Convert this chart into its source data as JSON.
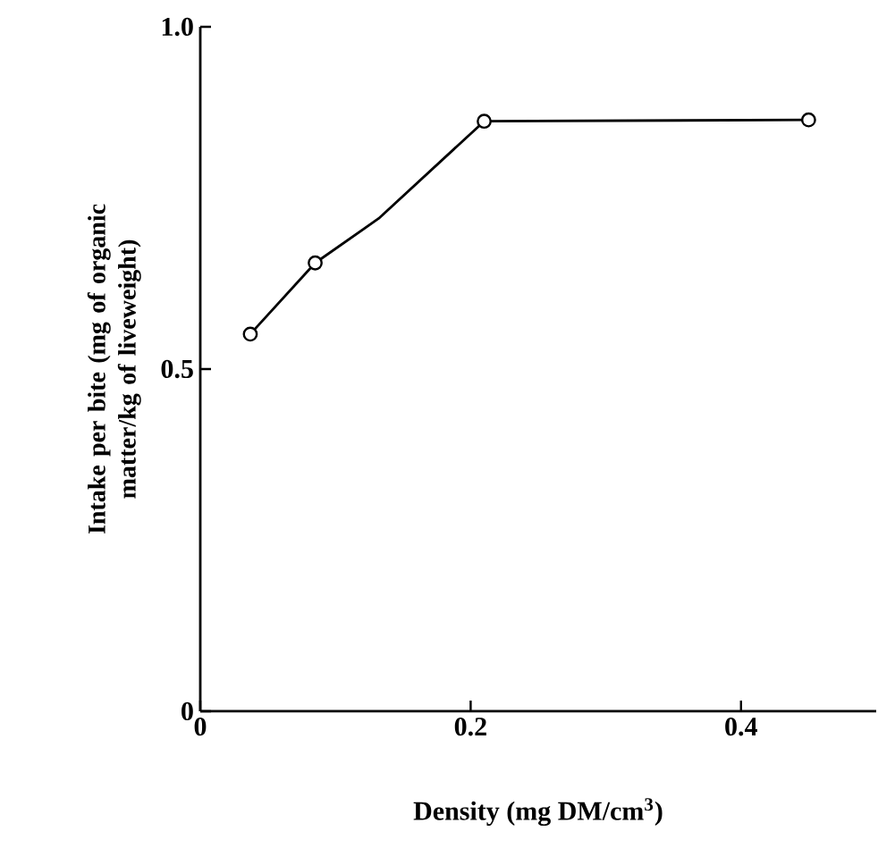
{
  "chart_data": {
    "type": "line",
    "xlabel": "Density (mg DM/cm$^{3}$)",
    "ylabel": "Intake per bite (mg of organic matter/kg of liveweight)",
    "xlim": [
      0,
      0.5
    ],
    "ylim": [
      0,
      1.0
    ],
    "xticks": [
      0,
      0.2,
      0.4
    ],
    "yticks": [
      0,
      0.5,
      {
        "value": 1.0,
        "label": "1.0"
      }
    ],
    "grid": false,
    "series": [
      {
        "type": "line",
        "color": "#000000",
        "marker": "none",
        "line_style": "solid",
        "x": [
          0.037,
          0.085,
          0.132,
          0.21,
          0.45
        ],
        "values": [
          0.551,
          0.655,
          0.72,
          0.862,
          0.864
        ]
      },
      {
        "type": "scatter",
        "color": "#000000",
        "marker": "circle",
        "x": [
          0.037,
          0.085,
          0.21,
          0.45
        ],
        "values": [
          0.551,
          0.655,
          0.862,
          0.864
        ]
      }
    ]
  }
}
